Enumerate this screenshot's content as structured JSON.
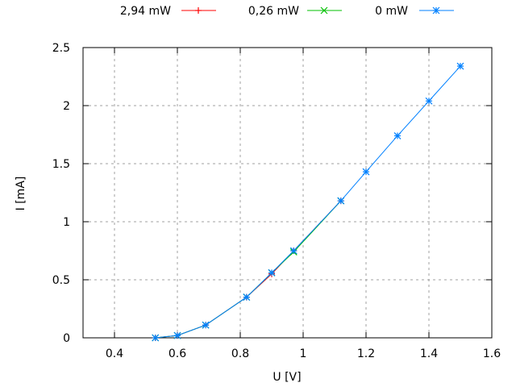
{
  "chart_data": {
    "type": "line",
    "title": "",
    "xlabel": "U [V]",
    "ylabel": "I [mA]",
    "xlim": [
      0.3,
      1.6
    ],
    "ylim": [
      0,
      2.5
    ],
    "xticks": [
      0.4,
      0.6,
      0.8,
      1,
      1.2,
      1.4,
      1.6
    ],
    "yticks": [
      0,
      0.5,
      1,
      1.5,
      2,
      2.5
    ],
    "xtick_labels": [
      "0.4",
      "0.6",
      "0.8",
      "1",
      "1.2",
      "1.4",
      "1.6"
    ],
    "ytick_labels": [
      "0",
      "0.5",
      "1",
      "1.5",
      "2",
      "2.5"
    ],
    "grid": true,
    "legend_position": "top",
    "series": [
      {
        "name": "2,94 mW",
        "color": "#ff0000",
        "marker": "plus",
        "x": [
          0.53,
          0.6,
          0.69,
          0.82,
          0.9,
          0.97,
          1.12
        ],
        "y": [
          0.0,
          0.02,
          0.11,
          0.35,
          0.55,
          0.75,
          1.18
        ]
      },
      {
        "name": "0,26 mW",
        "color": "#00c000",
        "marker": "cross",
        "x": [
          0.53,
          0.6,
          0.69,
          0.82,
          0.9,
          0.97,
          1.12
        ],
        "y": [
          0.0,
          0.02,
          0.11,
          0.35,
          0.56,
          0.74,
          1.18
        ]
      },
      {
        "name": "0 mW",
        "color": "#0080ff",
        "marker": "star",
        "x": [
          0.53,
          0.6,
          0.69,
          0.82,
          0.9,
          0.97,
          1.12,
          1.2,
          1.3,
          1.4,
          1.5
        ],
        "y": [
          0.0,
          0.02,
          0.11,
          0.35,
          0.56,
          0.75,
          1.18,
          1.43,
          1.74,
          2.04,
          2.34
        ]
      }
    ]
  }
}
